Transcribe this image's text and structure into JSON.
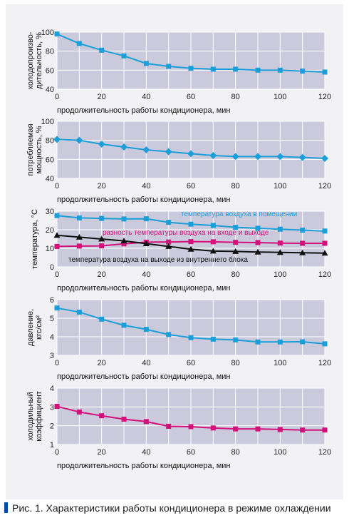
{
  "caption": "Рис. 1. Характеристики работы кондиционера в режиме охлаждении",
  "colors": {
    "plot_bg": "#cbcadd",
    "grid": "#ffffff",
    "blue": "#1a9fd9",
    "magenta": "#d4107a",
    "black": "#111111",
    "caption_bar": "#0a4a9c"
  },
  "chart_data": [
    {
      "type": "line",
      "xlabel": "продолжительность работы кондиционера, мин",
      "ylabel": [
        "холодопроизво-",
        "дительность, %"
      ],
      "xlim": [
        0,
        120
      ],
      "ylim": [
        40,
        100
      ],
      "xticks": [
        0,
        20,
        40,
        60,
        80,
        100,
        120
      ],
      "yticks": [
        40,
        60,
        80,
        100
      ],
      "grid": true,
      "series": [
        {
          "color": "blue",
          "marker": "square",
          "x": [
            0,
            10,
            20,
            30,
            40,
            50,
            60,
            70,
            80,
            90,
            100,
            110,
            120
          ],
          "y": [
            98,
            88,
            81,
            75,
            67,
            64,
            62,
            61,
            61,
            60,
            60,
            59,
            58
          ]
        }
      ]
    },
    {
      "type": "line",
      "xlabel": "продолжительность работы кондиционера, мин",
      "ylabel": [
        "потребляемая",
        "мощность, %"
      ],
      "xlim": [
        0,
        120
      ],
      "ylim": [
        40,
        100
      ],
      "xticks": [
        0,
        20,
        40,
        60,
        80,
        100,
        120
      ],
      "yticks": [
        40,
        60,
        80,
        100
      ],
      "grid": true,
      "series": [
        {
          "color": "blue",
          "marker": "diamond",
          "x": [
            0,
            10,
            20,
            30,
            40,
            50,
            60,
            70,
            80,
            90,
            100,
            110,
            120
          ],
          "y": [
            81,
            80,
            76,
            73,
            70,
            68,
            66,
            64,
            63,
            63,
            63,
            62,
            61
          ]
        }
      ]
    },
    {
      "type": "line",
      "xlabel": "продолжительность работы кондиционера, мин",
      "ylabel": [
        "температура, °С"
      ],
      "xlim": [
        0,
        120
      ],
      "ylim": [
        0,
        30
      ],
      "xticks": [
        0,
        20,
        40,
        60,
        80,
        100,
        120
      ],
      "yticks": [
        0,
        10,
        20,
        30
      ],
      "grid": true,
      "series": [
        {
          "name": "температура воздуха в помещении",
          "color": "blue",
          "marker": "square",
          "x": [
            0,
            10,
            20,
            30,
            40,
            50,
            60,
            70,
            80,
            90,
            100,
            110,
            120
          ],
          "y": [
            27.6,
            26.4,
            26.1,
            25.8,
            25.9,
            24,
            23,
            22.3,
            21.3,
            20.8,
            20.3,
            19.8,
            19.3
          ]
        },
        {
          "name": "разность температуры воздуха на входе и выходе",
          "color": "magenta",
          "marker": "square",
          "x": [
            0,
            10,
            20,
            30,
            40,
            50,
            60,
            70,
            80,
            90,
            100,
            110,
            120
          ],
          "y": [
            11,
            11.2,
            11.3,
            12.4,
            13.3,
            13.4,
            13.6,
            13.5,
            13.2,
            13.1,
            12.8,
            12.7,
            12.7
          ]
        },
        {
          "name": "температура воздуха на выходе из внутреннего блока",
          "color": "black",
          "marker": "triangle",
          "x": [
            0,
            10,
            20,
            30,
            40,
            50,
            60,
            70,
            80,
            90,
            100,
            110,
            120
          ],
          "y": [
            17,
            16,
            15,
            14,
            12.5,
            11,
            9.5,
            8.5,
            8.3,
            8,
            7.8,
            7.6,
            7.4
          ]
        }
      ]
    },
    {
      "type": "line",
      "xlabel": "продолжительность работы кондиционера, мин",
      "ylabel": [
        "давление,",
        "кгс/см²"
      ],
      "xlim": [
        0,
        120
      ],
      "ylim": [
        3,
        6
      ],
      "xticks": [
        0,
        20,
        40,
        60,
        80,
        100,
        120
      ],
      "yticks": [
        3,
        4,
        5,
        6
      ],
      "grid": true,
      "series": [
        {
          "color": "blue",
          "marker": "square",
          "x": [
            0,
            10,
            20,
            30,
            40,
            50,
            60,
            70,
            80,
            90,
            100,
            110,
            120
          ],
          "y": [
            5.55,
            5.33,
            4.95,
            4.62,
            4.4,
            4.12,
            3.95,
            3.87,
            3.83,
            3.72,
            3.72,
            3.73,
            3.62
          ]
        }
      ]
    },
    {
      "type": "line",
      "xlabel": "продолжительность работы кондиционера, мин",
      "ylabel": [
        "холодильный",
        "коэффициент"
      ],
      "xlim": [
        0,
        120
      ],
      "ylim": [
        1,
        4
      ],
      "xticks": [
        0,
        20,
        40,
        60,
        80,
        100,
        120
      ],
      "yticks": [
        1,
        2,
        3,
        4
      ],
      "grid": true,
      "series": [
        {
          "color": "magenta",
          "marker": "square",
          "x": [
            0,
            10,
            20,
            30,
            40,
            50,
            60,
            70,
            80,
            90,
            100,
            110,
            120
          ],
          "y": [
            3.03,
            2.73,
            2.53,
            2.35,
            2.22,
            1.97,
            1.95,
            1.88,
            1.83,
            1.83,
            1.8,
            1.77,
            1.77
          ]
        }
      ]
    }
  ]
}
